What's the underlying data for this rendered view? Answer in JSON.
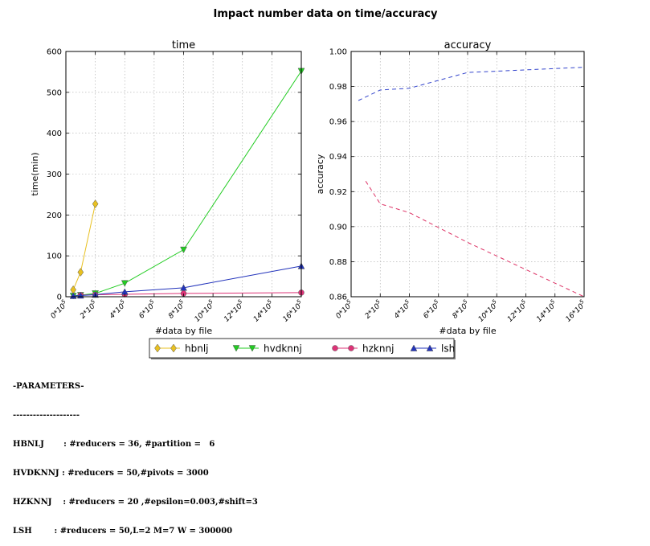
{
  "figure": {
    "title": "Impact number data on time/accuracy"
  },
  "chart_data": [
    {
      "type": "line",
      "title": "time",
      "xlabel": "#data by file",
      "ylabel": "time(min)",
      "xlim": [
        0,
        1600000
      ],
      "ylim": [
        0,
        600
      ],
      "grid": true,
      "x_ticks": [
        0,
        200000,
        400000,
        600000,
        800000,
        1000000,
        1200000,
        1400000,
        1600000
      ],
      "x_tick_labels": [
        "0*10^5",
        "2*10^5",
        "4*10^5",
        "6*10^5",
        "8*10^5",
        "10*10^5",
        "12*10^5",
        "14*10^5",
        "16*10^5"
      ],
      "y_ticks": [
        0,
        100,
        200,
        300,
        400,
        500,
        600
      ],
      "y_tick_labels": [
        "0",
        "100",
        "200",
        "300",
        "400",
        "500",
        "600"
      ],
      "series": [
        {
          "name": "hbnlj",
          "color": "#e8c020",
          "marker": "diamond",
          "style": "solid",
          "x": [
            50000,
            100000,
            200000
          ],
          "y": [
            17,
            60,
            227
          ]
        },
        {
          "name": "hvdknnj",
          "color": "#22cc22",
          "marker": "triangle-down",
          "style": "solid",
          "x": [
            50000,
            100000,
            200000,
            400000,
            800000,
            1600000
          ],
          "y": [
            2,
            4,
            8,
            33,
            115,
            552
          ]
        },
        {
          "name": "hzknnj",
          "color": "#dd3377",
          "marker": "circle",
          "style": "solid",
          "x": [
            100000,
            200000,
            400000,
            800000,
            1600000
          ],
          "y": [
            4,
            5,
            6,
            8,
            10
          ]
        },
        {
          "name": "lsh",
          "color": "#2233bb",
          "marker": "triangle-up",
          "style": "solid",
          "x": [
            50000,
            100000,
            200000,
            400000,
            800000,
            1600000
          ],
          "y": [
            2,
            3,
            5,
            12,
            22,
            75
          ]
        }
      ]
    },
    {
      "type": "line",
      "title": "accuracy",
      "xlabel": "#data by file",
      "ylabel": "accuracy",
      "xlim": [
        0,
        1600000
      ],
      "ylim": [
        0.86,
        1.0
      ],
      "grid": true,
      "x_ticks": [
        0,
        200000,
        400000,
        600000,
        800000,
        1000000,
        1200000,
        1400000,
        1600000
      ],
      "x_tick_labels": [
        "0*10^5",
        "2*10^5",
        "4*10^5",
        "6*10^5",
        "8*10^5",
        "10*10^5",
        "12*10^5",
        "14*10^5",
        "16*10^5"
      ],
      "y_ticks": [
        0.86,
        0.88,
        0.9,
        0.92,
        0.94,
        0.96,
        0.98,
        1.0
      ],
      "y_tick_labels": [
        "0.86",
        "0.88",
        "0.90",
        "0.92",
        "0.94",
        "0.96",
        "0.98",
        "1.00"
      ],
      "series": [
        {
          "color": "#3344cc",
          "style": "dashed",
          "x": [
            50000,
            200000,
            400000,
            800000,
            1600000
          ],
          "y": [
            0.972,
            0.978,
            0.979,
            0.988,
            0.991
          ]
        },
        {
          "color": "#dd3366",
          "style": "dashed",
          "x": [
            100000,
            200000,
            400000,
            800000,
            1600000
          ],
          "y": [
            0.926,
            0.913,
            0.908,
            0.891,
            0.86
          ]
        }
      ]
    }
  ],
  "legend": {
    "placement": "bottom-center",
    "entries": [
      "hbnlj",
      "hvdknnj",
      "hzknnj",
      "lsh"
    ]
  },
  "parameters": {
    "heading": "-PARAMETERS-",
    "divider": "--------------------",
    "lines": [
      "HBNLJ       : #reducers = 36, #partition =   6",
      "HVDKNNJ : #reducers = 50,#pivots = 3000",
      "HZKNNJ    : #reducers = 20 ,#epsilon=0.003,#shift=3",
      "LSH        : #reducers = 50,L=2 M=7 W = 300000"
    ]
  }
}
